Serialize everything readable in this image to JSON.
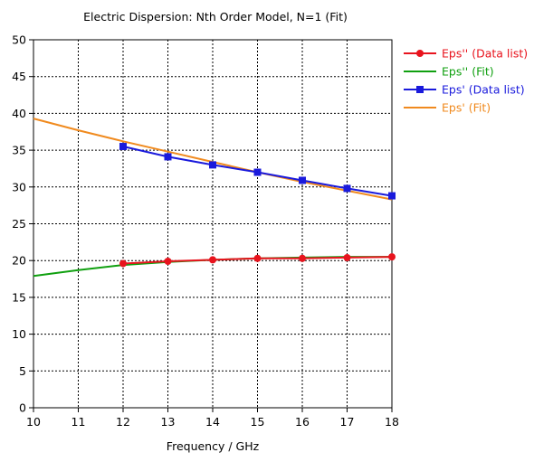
{
  "chart_data": {
    "type": "line",
    "title": "Electric Dispersion: Nth Order Model, N=1 (Fit)",
    "xlabel": "Frequency / GHz",
    "ylabel": "",
    "xlim": [
      10,
      18
    ],
    "ylim": [
      0,
      50
    ],
    "xticks": [
      10,
      11,
      12,
      13,
      14,
      15,
      16,
      17,
      18
    ],
    "yticks": [
      0,
      5,
      10,
      15,
      20,
      25,
      30,
      35,
      40,
      45,
      50
    ],
    "grid": true,
    "legend_position": "top-right",
    "series": [
      {
        "name": "Eps'' (Data list)",
        "color": "#e8141e",
        "line_color": "#e8141e",
        "marker": "circle",
        "x": [
          12,
          13,
          14,
          15,
          16,
          17,
          18
        ],
        "y": [
          19.6,
          19.9,
          20.1,
          20.3,
          20.3,
          20.4,
          20.5
        ]
      },
      {
        "name": "Eps'' (Fit)",
        "color": "#10a010",
        "line_color": "#10a010",
        "marker": "none",
        "x": [
          10,
          11,
          12,
          13,
          14,
          15,
          16,
          17,
          18
        ],
        "y": [
          17.9,
          18.7,
          19.4,
          19.8,
          20.1,
          20.3,
          20.4,
          20.5,
          20.5
        ]
      },
      {
        "name": "Eps' (Data list)",
        "color": "#1a1adc",
        "line_color": "#1a1adc",
        "marker": "square",
        "x": [
          12,
          13,
          14,
          15,
          16,
          17,
          18
        ],
        "y": [
          35.5,
          34.1,
          33.0,
          32.0,
          30.9,
          29.8,
          28.8
        ]
      },
      {
        "name": "Eps' (Fit)",
        "color": "#f08a1e",
        "line_color": "#f08a1e",
        "marker": "none",
        "x": [
          10,
          11,
          12,
          13,
          14,
          15,
          16,
          17,
          18
        ],
        "y": [
          39.3,
          37.7,
          36.2,
          34.8,
          33.4,
          32.0,
          30.7,
          29.5,
          28.3
        ]
      }
    ]
  }
}
